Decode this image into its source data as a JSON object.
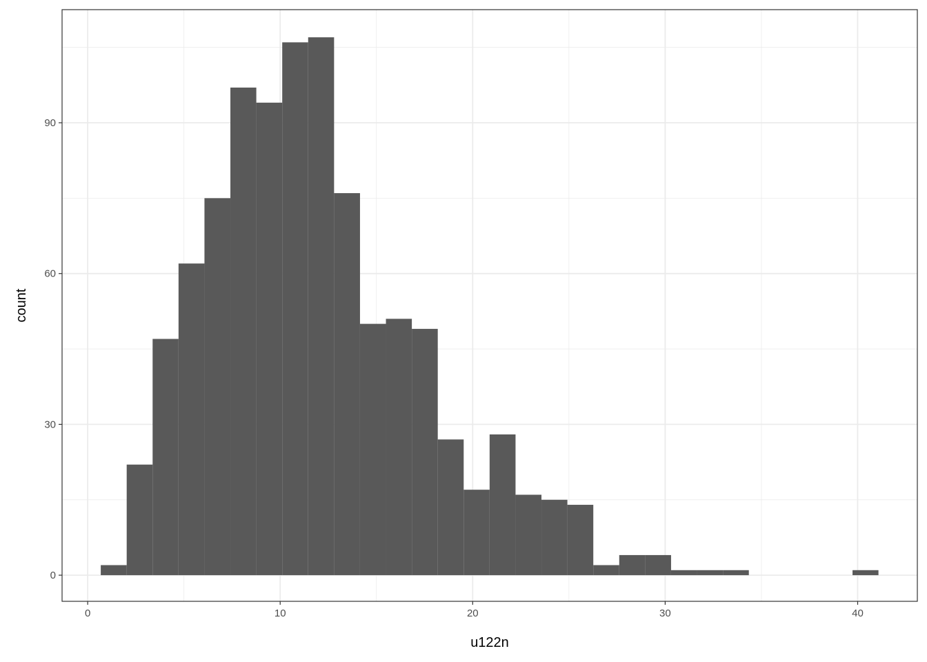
{
  "chart_data": {
    "type": "bar",
    "subtype": "histogram",
    "title": "",
    "xlabel": "u122n",
    "ylabel": "count",
    "bin_range": [
      0.68,
      41.08
    ],
    "bins": 30,
    "values": [
      2,
      22,
      47,
      62,
      75,
      97,
      94,
      106,
      107,
      76,
      50,
      51,
      49,
      27,
      17,
      28,
      16,
      15,
      14,
      2,
      4,
      4,
      1,
      1,
      1,
      0,
      0,
      0,
      0,
      1
    ],
    "xlim": [
      -1.33,
      43.1
    ],
    "ylim": [
      -5.2,
      112.5
    ],
    "x_ticks": [
      0,
      10,
      20,
      30,
      40
    ],
    "y_ticks": [
      0,
      30,
      60,
      90
    ],
    "x_tick_labels": [
      "0",
      "10",
      "20",
      "30",
      "40"
    ],
    "y_tick_labels": [
      "0",
      "30",
      "60",
      "90"
    ],
    "grid": true,
    "theme": "bw",
    "colors": {
      "bar": "#595959",
      "grid": "#ebebeb",
      "panel_border": "#333333"
    }
  }
}
